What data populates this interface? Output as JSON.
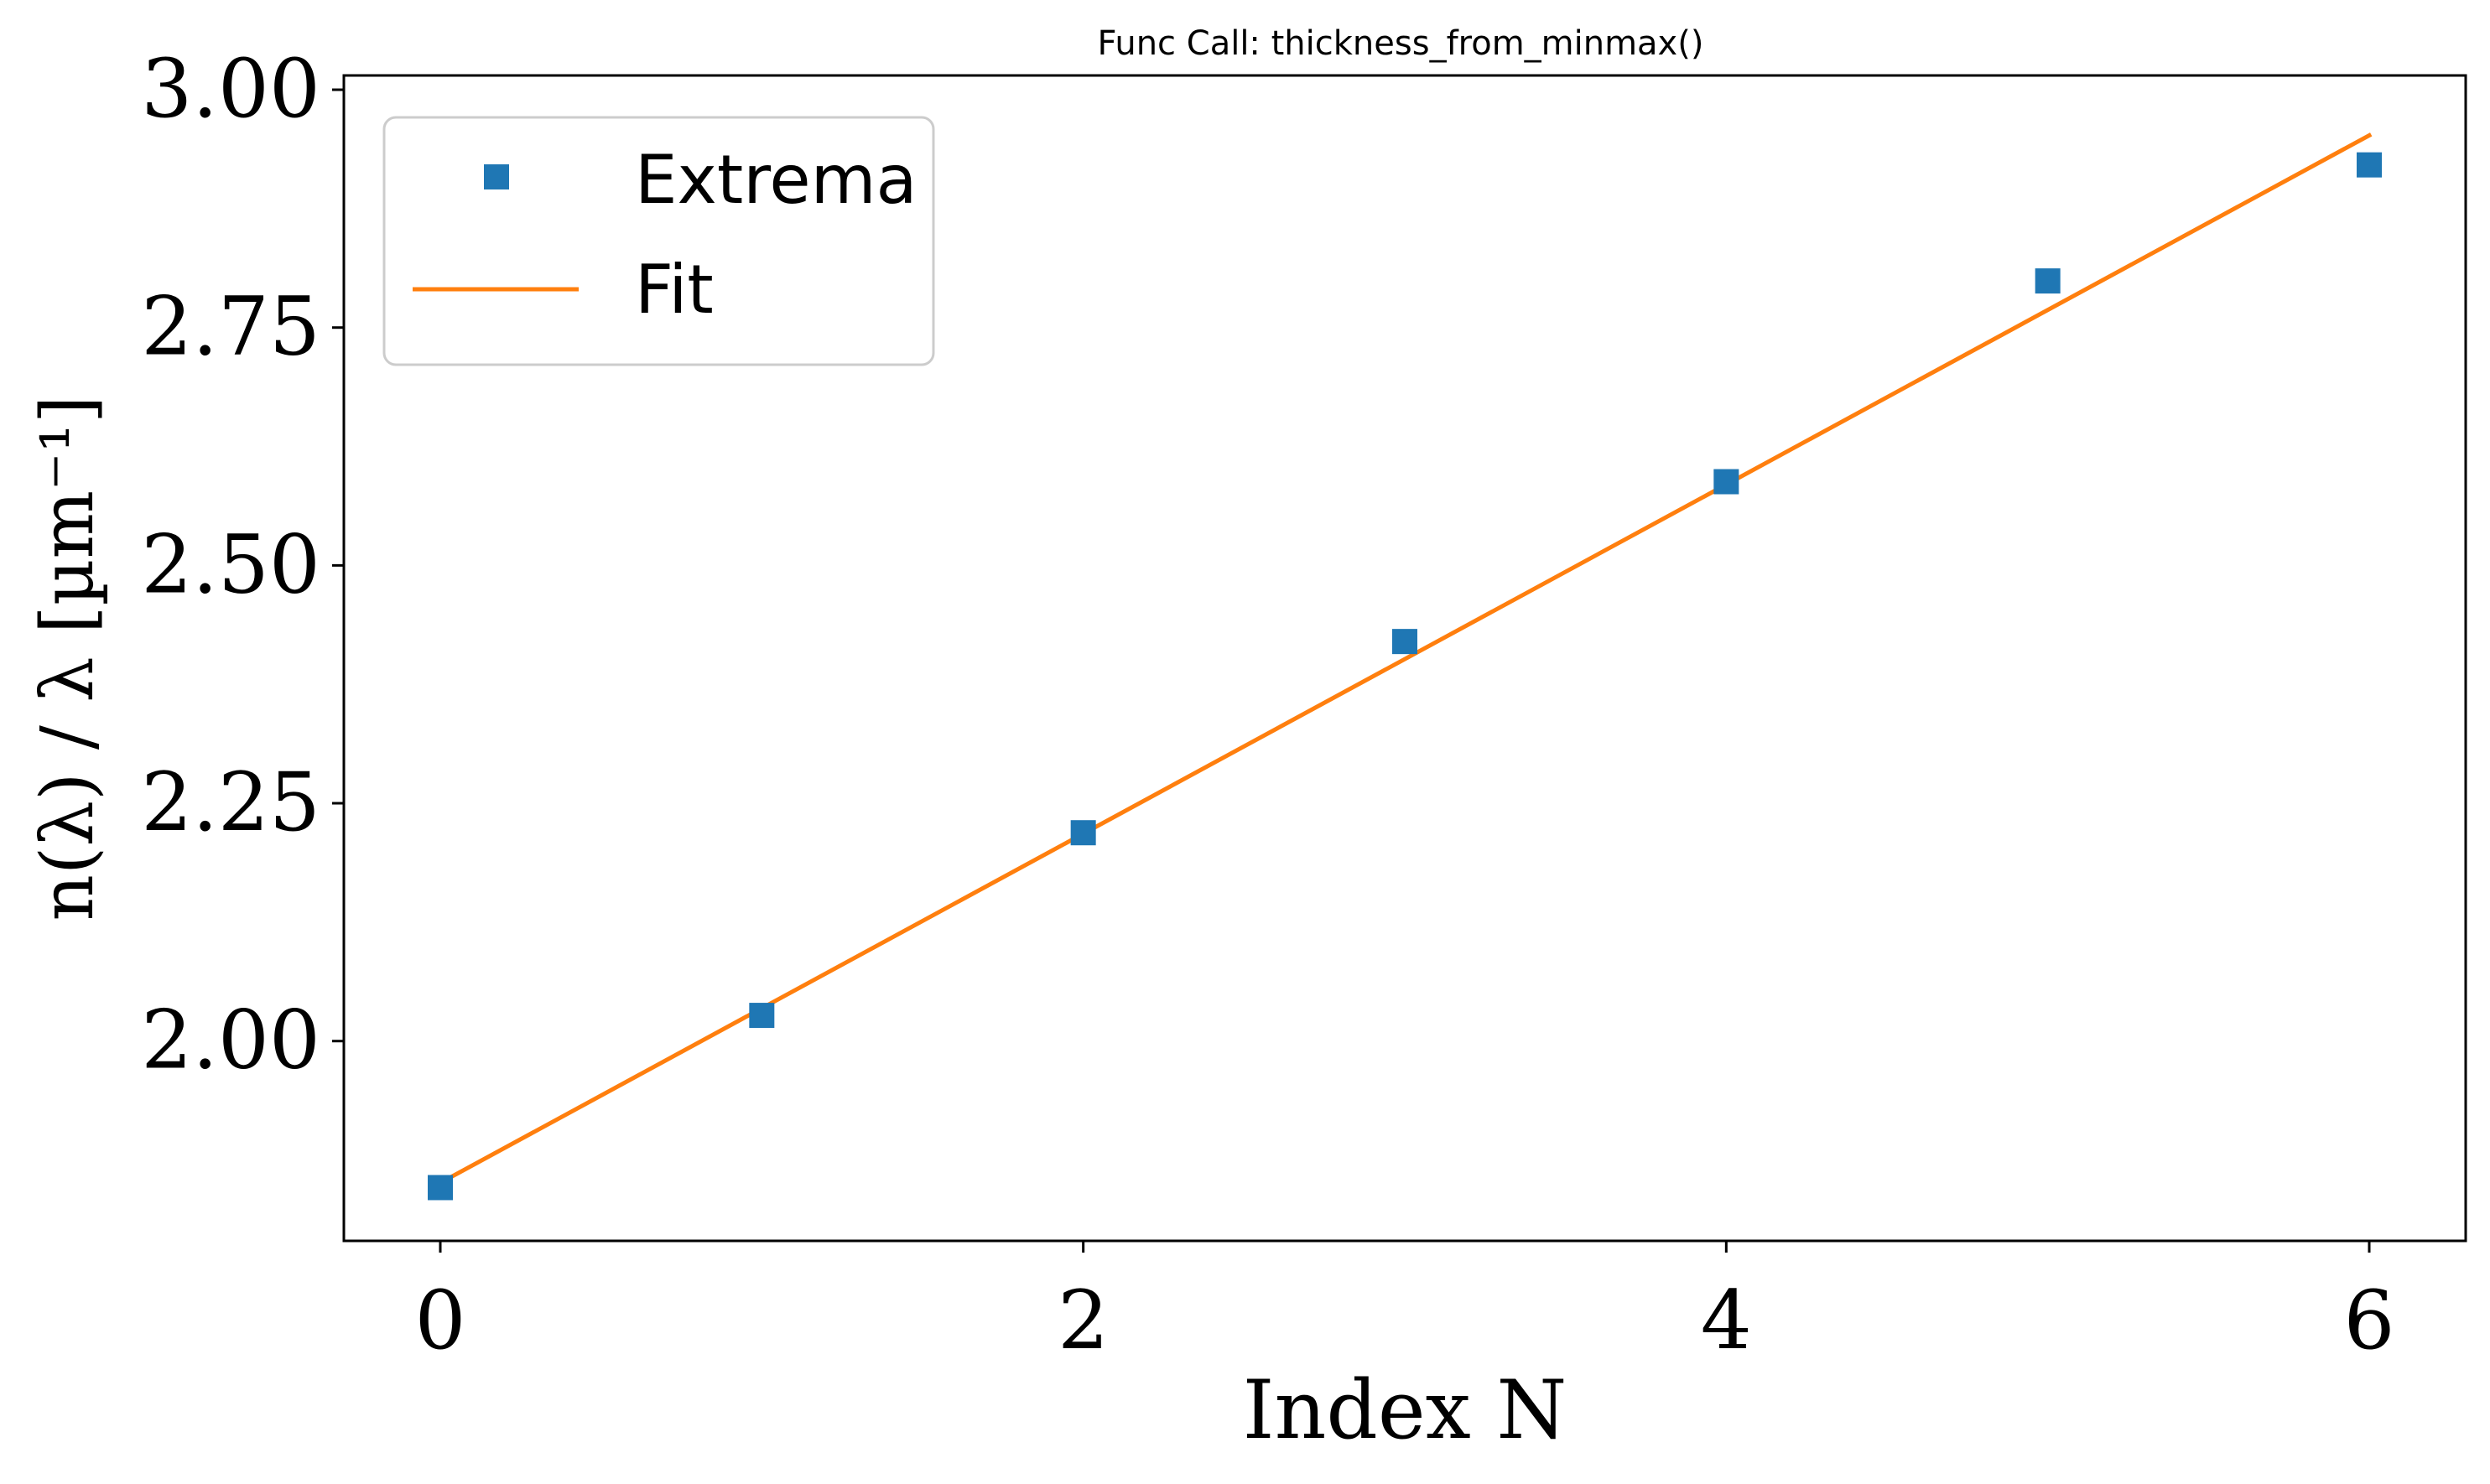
{
  "chart_data": {
    "type": "scatter",
    "title": "Func Call: thickness_from_minmax()",
    "xlabel": "Index N",
    "ylabel": "n(λ) / λ  [µm⁻¹]",
    "xlim": [
      -0.3,
      6.3
    ],
    "ylim": [
      1.79,
      3.015
    ],
    "x_ticks": [
      0,
      2,
      4,
      6
    ],
    "x_tick_labels": [
      "0",
      "2",
      "4",
      "6"
    ],
    "y_ticks": [
      2.0,
      2.25,
      2.5,
      2.75,
      3.0
    ],
    "y_tick_labels": [
      "2.00",
      "2.25",
      "2.50",
      "2.75",
      "3.00"
    ],
    "grid": false,
    "legend_position": "top-left",
    "series": [
      {
        "name": "Extrema",
        "kind": "scatter",
        "marker": "square",
        "color": "#1f77b4",
        "x": [
          0,
          1,
          2,
          3,
          4,
          5,
          6
        ],
        "y": [
          1.846,
          2.027,
          2.219,
          2.42,
          2.588,
          2.799,
          2.921
        ]
      },
      {
        "name": "Fit",
        "kind": "line",
        "color": "#ff7f0e",
        "x": [
          0,
          6
        ],
        "y": [
          1.851,
          2.952
        ]
      }
    ]
  }
}
